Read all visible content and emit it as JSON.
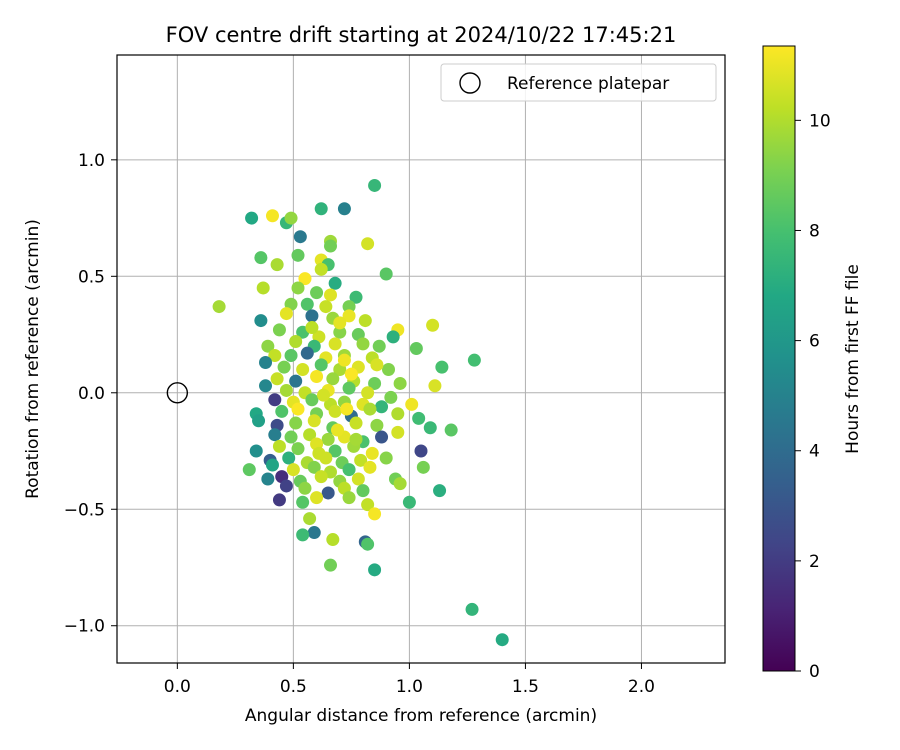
{
  "chart_data": {
    "type": "scatter",
    "title": "FOV centre drift starting at 2024/10/22 17:45:21",
    "xlabel": "Angular distance from reference (arcmin)",
    "ylabel": "Rotation from reference (arcmin)",
    "xlim": [
      -0.26,
      2.36
    ],
    "ylim": [
      -1.16,
      1.45
    ],
    "xticks": [
      0.0,
      0.5,
      1.0,
      1.5,
      2.0
    ],
    "xtick_labels": [
      "0.0",
      "0.5",
      "1.0",
      "1.5",
      "2.0"
    ],
    "yticks": [
      -1.0,
      -0.5,
      0.0,
      0.5,
      1.0
    ],
    "ytick_labels": [
      "−1.0",
      "−0.5",
      "0.0",
      "0.5",
      "1.0"
    ],
    "grid": true,
    "legend": {
      "position": "top-right",
      "entries": [
        "Reference platepar"
      ]
    },
    "colorbar": {
      "label": "Hours from first FF file",
      "colormap": "viridis",
      "range": [
        0,
        11.35
      ],
      "ticks": [
        0,
        2,
        4,
        6,
        8,
        10
      ],
      "tick_labels": [
        "0",
        "2",
        "4",
        "6",
        "8",
        "10"
      ]
    },
    "reference_point": {
      "name": "Reference platepar",
      "x": 0.0,
      "y": 0.0
    },
    "series": [
      {
        "name": "",
        "points": [
          {
            "x": 0.18,
            "y": 0.37,
            "h": 9.8
          },
          {
            "x": 0.32,
            "y": 0.75,
            "h": 6.8
          },
          {
            "x": 0.41,
            "y": 0.76,
            "h": 11.2
          },
          {
            "x": 0.47,
            "y": 0.73,
            "h": 7.5
          },
          {
            "x": 0.49,
            "y": 0.75,
            "h": 9.5
          },
          {
            "x": 0.53,
            "y": 0.67,
            "h": 4.6
          },
          {
            "x": 0.62,
            "y": 0.79,
            "h": 7.3
          },
          {
            "x": 0.72,
            "y": 0.79,
            "h": 4.9
          },
          {
            "x": 0.85,
            "y": 0.89,
            "h": 7.5
          },
          {
            "x": 0.66,
            "y": 0.65,
            "h": 9.7
          },
          {
            "x": 0.66,
            "y": 0.63,
            "h": 8.9
          },
          {
            "x": 0.82,
            "y": 0.64,
            "h": 10.6
          },
          {
            "x": 0.36,
            "y": 0.58,
            "h": 8.3
          },
          {
            "x": 0.43,
            "y": 0.55,
            "h": 9.9
          },
          {
            "x": 0.52,
            "y": 0.59,
            "h": 8.6
          },
          {
            "x": 0.62,
            "y": 0.57,
            "h": 10.9
          },
          {
            "x": 0.65,
            "y": 0.55,
            "h": 8.0
          },
          {
            "x": 0.62,
            "y": 0.53,
            "h": 10.3
          },
          {
            "x": 0.9,
            "y": 0.51,
            "h": 8.4
          },
          {
            "x": 0.37,
            "y": 0.45,
            "h": 10.1
          },
          {
            "x": 0.68,
            "y": 0.47,
            "h": 7.0
          },
          {
            "x": 0.55,
            "y": 0.49,
            "h": 11.3
          },
          {
            "x": 0.52,
            "y": 0.45,
            "h": 9.4
          },
          {
            "x": 0.6,
            "y": 0.43,
            "h": 8.8
          },
          {
            "x": 0.66,
            "y": 0.42,
            "h": 10.8
          },
          {
            "x": 0.77,
            "y": 0.41,
            "h": 7.7
          },
          {
            "x": 0.49,
            "y": 0.38,
            "h": 9.2
          },
          {
            "x": 0.56,
            "y": 0.38,
            "h": 8.2
          },
          {
            "x": 0.64,
            "y": 0.37,
            "h": 10.4
          },
          {
            "x": 0.74,
            "y": 0.37,
            "h": 9.0
          },
          {
            "x": 0.36,
            "y": 0.31,
            "h": 5.5
          },
          {
            "x": 0.47,
            "y": 0.34,
            "h": 10.9
          },
          {
            "x": 0.58,
            "y": 0.33,
            "h": 4.2
          },
          {
            "x": 0.67,
            "y": 0.32,
            "h": 9.6
          },
          {
            "x": 0.74,
            "y": 0.33,
            "h": 11.0
          },
          {
            "x": 0.81,
            "y": 0.31,
            "h": 10.2
          },
          {
            "x": 0.95,
            "y": 0.27,
            "h": 11.1
          },
          {
            "x": 1.1,
            "y": 0.29,
            "h": 10.6
          },
          {
            "x": 0.44,
            "y": 0.27,
            "h": 9.1
          },
          {
            "x": 0.54,
            "y": 0.26,
            "h": 8.1
          },
          {
            "x": 0.61,
            "y": 0.24,
            "h": 10.5
          },
          {
            "x": 0.7,
            "y": 0.26,
            "h": 9.3
          },
          {
            "x": 0.78,
            "y": 0.25,
            "h": 8.7
          },
          {
            "x": 0.93,
            "y": 0.24,
            "h": 7.2
          },
          {
            "x": 0.39,
            "y": 0.2,
            "h": 9.4
          },
          {
            "x": 0.51,
            "y": 0.22,
            "h": 10.0
          },
          {
            "x": 0.59,
            "y": 0.2,
            "h": 7.6
          },
          {
            "x": 0.68,
            "y": 0.21,
            "h": 10.7
          },
          {
            "x": 0.8,
            "y": 0.21,
            "h": 9.5
          },
          {
            "x": 0.87,
            "y": 0.2,
            "h": 8.9
          },
          {
            "x": 1.03,
            "y": 0.19,
            "h": 8.6
          },
          {
            "x": 0.42,
            "y": 0.16,
            "h": 10.3
          },
          {
            "x": 0.49,
            "y": 0.16,
            "h": 8.4
          },
          {
            "x": 0.56,
            "y": 0.17,
            "h": 3.8
          },
          {
            "x": 0.64,
            "y": 0.15,
            "h": 10.9
          },
          {
            "x": 0.72,
            "y": 0.16,
            "h": 9.7
          },
          {
            "x": 0.84,
            "y": 0.15,
            "h": 10.2
          },
          {
            "x": 1.28,
            "y": 0.14,
            "h": 7.9
          },
          {
            "x": 0.38,
            "y": 0.13,
            "h": 5.0
          },
          {
            "x": 0.46,
            "y": 0.11,
            "h": 9.0
          },
          {
            "x": 0.54,
            "y": 0.1,
            "h": 10.6
          },
          {
            "x": 0.62,
            "y": 0.12,
            "h": 8.3
          },
          {
            "x": 0.7,
            "y": 0.1,
            "h": 9.9
          },
          {
            "x": 0.78,
            "y": 0.11,
            "h": 10.8
          },
          {
            "x": 0.91,
            "y": 0.1,
            "h": 9.2
          },
          {
            "x": 1.14,
            "y": 0.11,
            "h": 8.0
          },
          {
            "x": 0.43,
            "y": 0.06,
            "h": 10.4
          },
          {
            "x": 0.51,
            "y": 0.05,
            "h": 4.4
          },
          {
            "x": 0.6,
            "y": 0.07,
            "h": 11.2
          },
          {
            "x": 0.67,
            "y": 0.06,
            "h": 9.6
          },
          {
            "x": 0.76,
            "y": 0.05,
            "h": 10.1
          },
          {
            "x": 0.85,
            "y": 0.04,
            "h": 8.8
          },
          {
            "x": 0.96,
            "y": 0.04,
            "h": 9.4
          },
          {
            "x": 1.11,
            "y": 0.03,
            "h": 10.7
          },
          {
            "x": 0.38,
            "y": 0.03,
            "h": 5.2
          },
          {
            "x": 0.47,
            "y": 0.01,
            "h": 9.8
          },
          {
            "x": 0.55,
            "y": 0.0,
            "h": 10.3
          },
          {
            "x": 0.65,
            "y": 0.01,
            "h": 11.0
          },
          {
            "x": 0.74,
            "y": 0.02,
            "h": 8.5
          },
          {
            "x": 0.82,
            "y": 0.0,
            "h": 10.6
          },
          {
            "x": 0.92,
            "y": -0.02,
            "h": 9.1
          },
          {
            "x": 0.42,
            "y": -0.03,
            "h": 2.0
          },
          {
            "x": 0.5,
            "y": -0.04,
            "h": 10.9
          },
          {
            "x": 0.58,
            "y": -0.03,
            "h": 8.7
          },
          {
            "x": 0.66,
            "y": -0.05,
            "h": 10.2
          },
          {
            "x": 0.72,
            "y": -0.04,
            "h": 9.5
          },
          {
            "x": 0.8,
            "y": -0.05,
            "h": 10.8
          },
          {
            "x": 0.88,
            "y": -0.06,
            "h": 7.4
          },
          {
            "x": 1.01,
            "y": -0.05,
            "h": 11.1
          },
          {
            "x": 0.34,
            "y": -0.09,
            "h": 6.8
          },
          {
            "x": 0.45,
            "y": -0.08,
            "h": 8.2
          },
          {
            "x": 0.52,
            "y": -0.07,
            "h": 11.3
          },
          {
            "x": 0.6,
            "y": -0.09,
            "h": 9.0
          },
          {
            "x": 0.68,
            "y": -0.08,
            "h": 10.5
          },
          {
            "x": 0.75,
            "y": -0.1,
            "h": 4.0
          },
          {
            "x": 0.83,
            "y": -0.07,
            "h": 9.9
          },
          {
            "x": 0.95,
            "y": -0.09,
            "h": 10.0
          },
          {
            "x": 1.04,
            "y": -0.11,
            "h": 7.8
          },
          {
            "x": 0.35,
            "y": -0.12,
            "h": 6.4
          },
          {
            "x": 0.43,
            "y": -0.14,
            "h": 2.6
          },
          {
            "x": 0.51,
            "y": -0.13,
            "h": 9.3
          },
          {
            "x": 0.59,
            "y": -0.12,
            "h": 10.7
          },
          {
            "x": 0.67,
            "y": -0.15,
            "h": 8.6
          },
          {
            "x": 0.77,
            "y": -0.13,
            "h": 10.4
          },
          {
            "x": 0.86,
            "y": -0.14,
            "h": 9.4
          },
          {
            "x": 1.09,
            "y": -0.15,
            "h": 7.6
          },
          {
            "x": 1.18,
            "y": -0.16,
            "h": 8.4
          },
          {
            "x": 0.42,
            "y": -0.18,
            "h": 4.8
          },
          {
            "x": 0.49,
            "y": -0.19,
            "h": 8.9
          },
          {
            "x": 0.57,
            "y": -0.18,
            "h": 10.1
          },
          {
            "x": 0.65,
            "y": -0.2,
            "h": 9.6
          },
          {
            "x": 0.72,
            "y": -0.19,
            "h": 10.9
          },
          {
            "x": 0.8,
            "y": -0.21,
            "h": 8.1
          },
          {
            "x": 0.88,
            "y": -0.19,
            "h": 3.0
          },
          {
            "x": 0.95,
            "y": -0.17,
            "h": 10.6
          },
          {
            "x": 0.34,
            "y": -0.25,
            "h": 5.6
          },
          {
            "x": 0.44,
            "y": -0.23,
            "h": 10.2
          },
          {
            "x": 0.52,
            "y": -0.24,
            "h": 9.1
          },
          {
            "x": 0.6,
            "y": -0.22,
            "h": 10.8
          },
          {
            "x": 0.68,
            "y": -0.25,
            "h": 8.3
          },
          {
            "x": 0.76,
            "y": -0.23,
            "h": 9.7
          },
          {
            "x": 0.84,
            "y": -0.26,
            "h": 11.0
          },
          {
            "x": 1.05,
            "y": -0.25,
            "h": 2.4
          },
          {
            "x": 0.4,
            "y": -0.29,
            "h": 3.4
          },
          {
            "x": 0.48,
            "y": -0.28,
            "h": 7.2
          },
          {
            "x": 0.56,
            "y": -0.3,
            "h": 9.9
          },
          {
            "x": 0.64,
            "y": -0.28,
            "h": 10.5
          },
          {
            "x": 0.71,
            "y": -0.3,
            "h": 8.8
          },
          {
            "x": 0.79,
            "y": -0.29,
            "h": 10.3
          },
          {
            "x": 0.9,
            "y": -0.28,
            "h": 9.3
          },
          {
            "x": 0.31,
            "y": -0.33,
            "h": 8.5
          },
          {
            "x": 0.41,
            "y": -0.31,
            "h": 6.6
          },
          {
            "x": 0.5,
            "y": -0.33,
            "h": 10.7
          },
          {
            "x": 0.59,
            "y": -0.32,
            "h": 9.2
          },
          {
            "x": 0.66,
            "y": -0.34,
            "h": 10.0
          },
          {
            "x": 0.74,
            "y": -0.33,
            "h": 8.0
          },
          {
            "x": 0.83,
            "y": -0.32,
            "h": 10.9
          },
          {
            "x": 1.06,
            "y": -0.32,
            "h": 9.0
          },
          {
            "x": 0.39,
            "y": -0.37,
            "h": 5.1
          },
          {
            "x": 0.45,
            "y": -0.36,
            "h": 1.5
          },
          {
            "x": 0.53,
            "y": -0.38,
            "h": 8.7
          },
          {
            "x": 0.62,
            "y": -0.36,
            "h": 10.4
          },
          {
            "x": 0.7,
            "y": -0.38,
            "h": 9.5
          },
          {
            "x": 0.78,
            "y": -0.37,
            "h": 10.6
          },
          {
            "x": 0.94,
            "y": -0.37,
            "h": 8.9
          },
          {
            "x": 0.96,
            "y": -0.39,
            "h": 9.8
          },
          {
            "x": 0.47,
            "y": -0.4,
            "h": 2.2
          },
          {
            "x": 0.55,
            "y": -0.41,
            "h": 9.4
          },
          {
            "x": 0.65,
            "y": -0.43,
            "h": 3.1
          },
          {
            "x": 0.72,
            "y": -0.41,
            "h": 10.2
          },
          {
            "x": 0.8,
            "y": -0.42,
            "h": 8.6
          },
          {
            "x": 1.13,
            "y": -0.42,
            "h": 7.1
          },
          {
            "x": 0.44,
            "y": -0.46,
            "h": 1.9
          },
          {
            "x": 0.54,
            "y": -0.47,
            "h": 8.3
          },
          {
            "x": 0.6,
            "y": -0.45,
            "h": 10.8
          },
          {
            "x": 0.74,
            "y": -0.45,
            "h": 9.6
          },
          {
            "x": 0.82,
            "y": -0.48,
            "h": 10.3
          },
          {
            "x": 0.85,
            "y": -0.52,
            "h": 11.2
          },
          {
            "x": 1.0,
            "y": -0.47,
            "h": 7.6
          },
          {
            "x": 0.57,
            "y": -0.54,
            "h": 9.9
          },
          {
            "x": 0.59,
            "y": -0.6,
            "h": 4.5
          },
          {
            "x": 0.54,
            "y": -0.61,
            "h": 7.7
          },
          {
            "x": 0.67,
            "y": -0.63,
            "h": 10.1
          },
          {
            "x": 0.81,
            "y": -0.64,
            "h": 3.7
          },
          {
            "x": 0.82,
            "y": -0.65,
            "h": 8.2
          },
          {
            "x": 0.66,
            "y": -0.74,
            "h": 8.9
          },
          {
            "x": 0.85,
            "y": -0.76,
            "h": 6.9
          },
          {
            "x": 1.27,
            "y": -0.93,
            "h": 7.4
          },
          {
            "x": 1.4,
            "y": -1.06,
            "h": 6.9
          },
          {
            "x": 0.7,
            "y": 0.3,
            "h": 10.9
          },
          {
            "x": 0.72,
            "y": 0.14,
            "h": 11.1
          },
          {
            "x": 0.63,
            "y": -0.01,
            "h": 10.6
          },
          {
            "x": 0.69,
            "y": -0.16,
            "h": 11.0
          },
          {
            "x": 0.75,
            "y": 0.08,
            "h": 11.3
          },
          {
            "x": 0.58,
            "y": 0.28,
            "h": 10.2
          },
          {
            "x": 0.77,
            "y": -0.2,
            "h": 9.8
          },
          {
            "x": 0.61,
            "y": -0.26,
            "h": 10.5
          },
          {
            "x": 0.86,
            "y": 0.12,
            "h": 10.7
          },
          {
            "x": 0.73,
            "y": -0.07,
            "h": 11.2
          }
        ]
      }
    ]
  }
}
